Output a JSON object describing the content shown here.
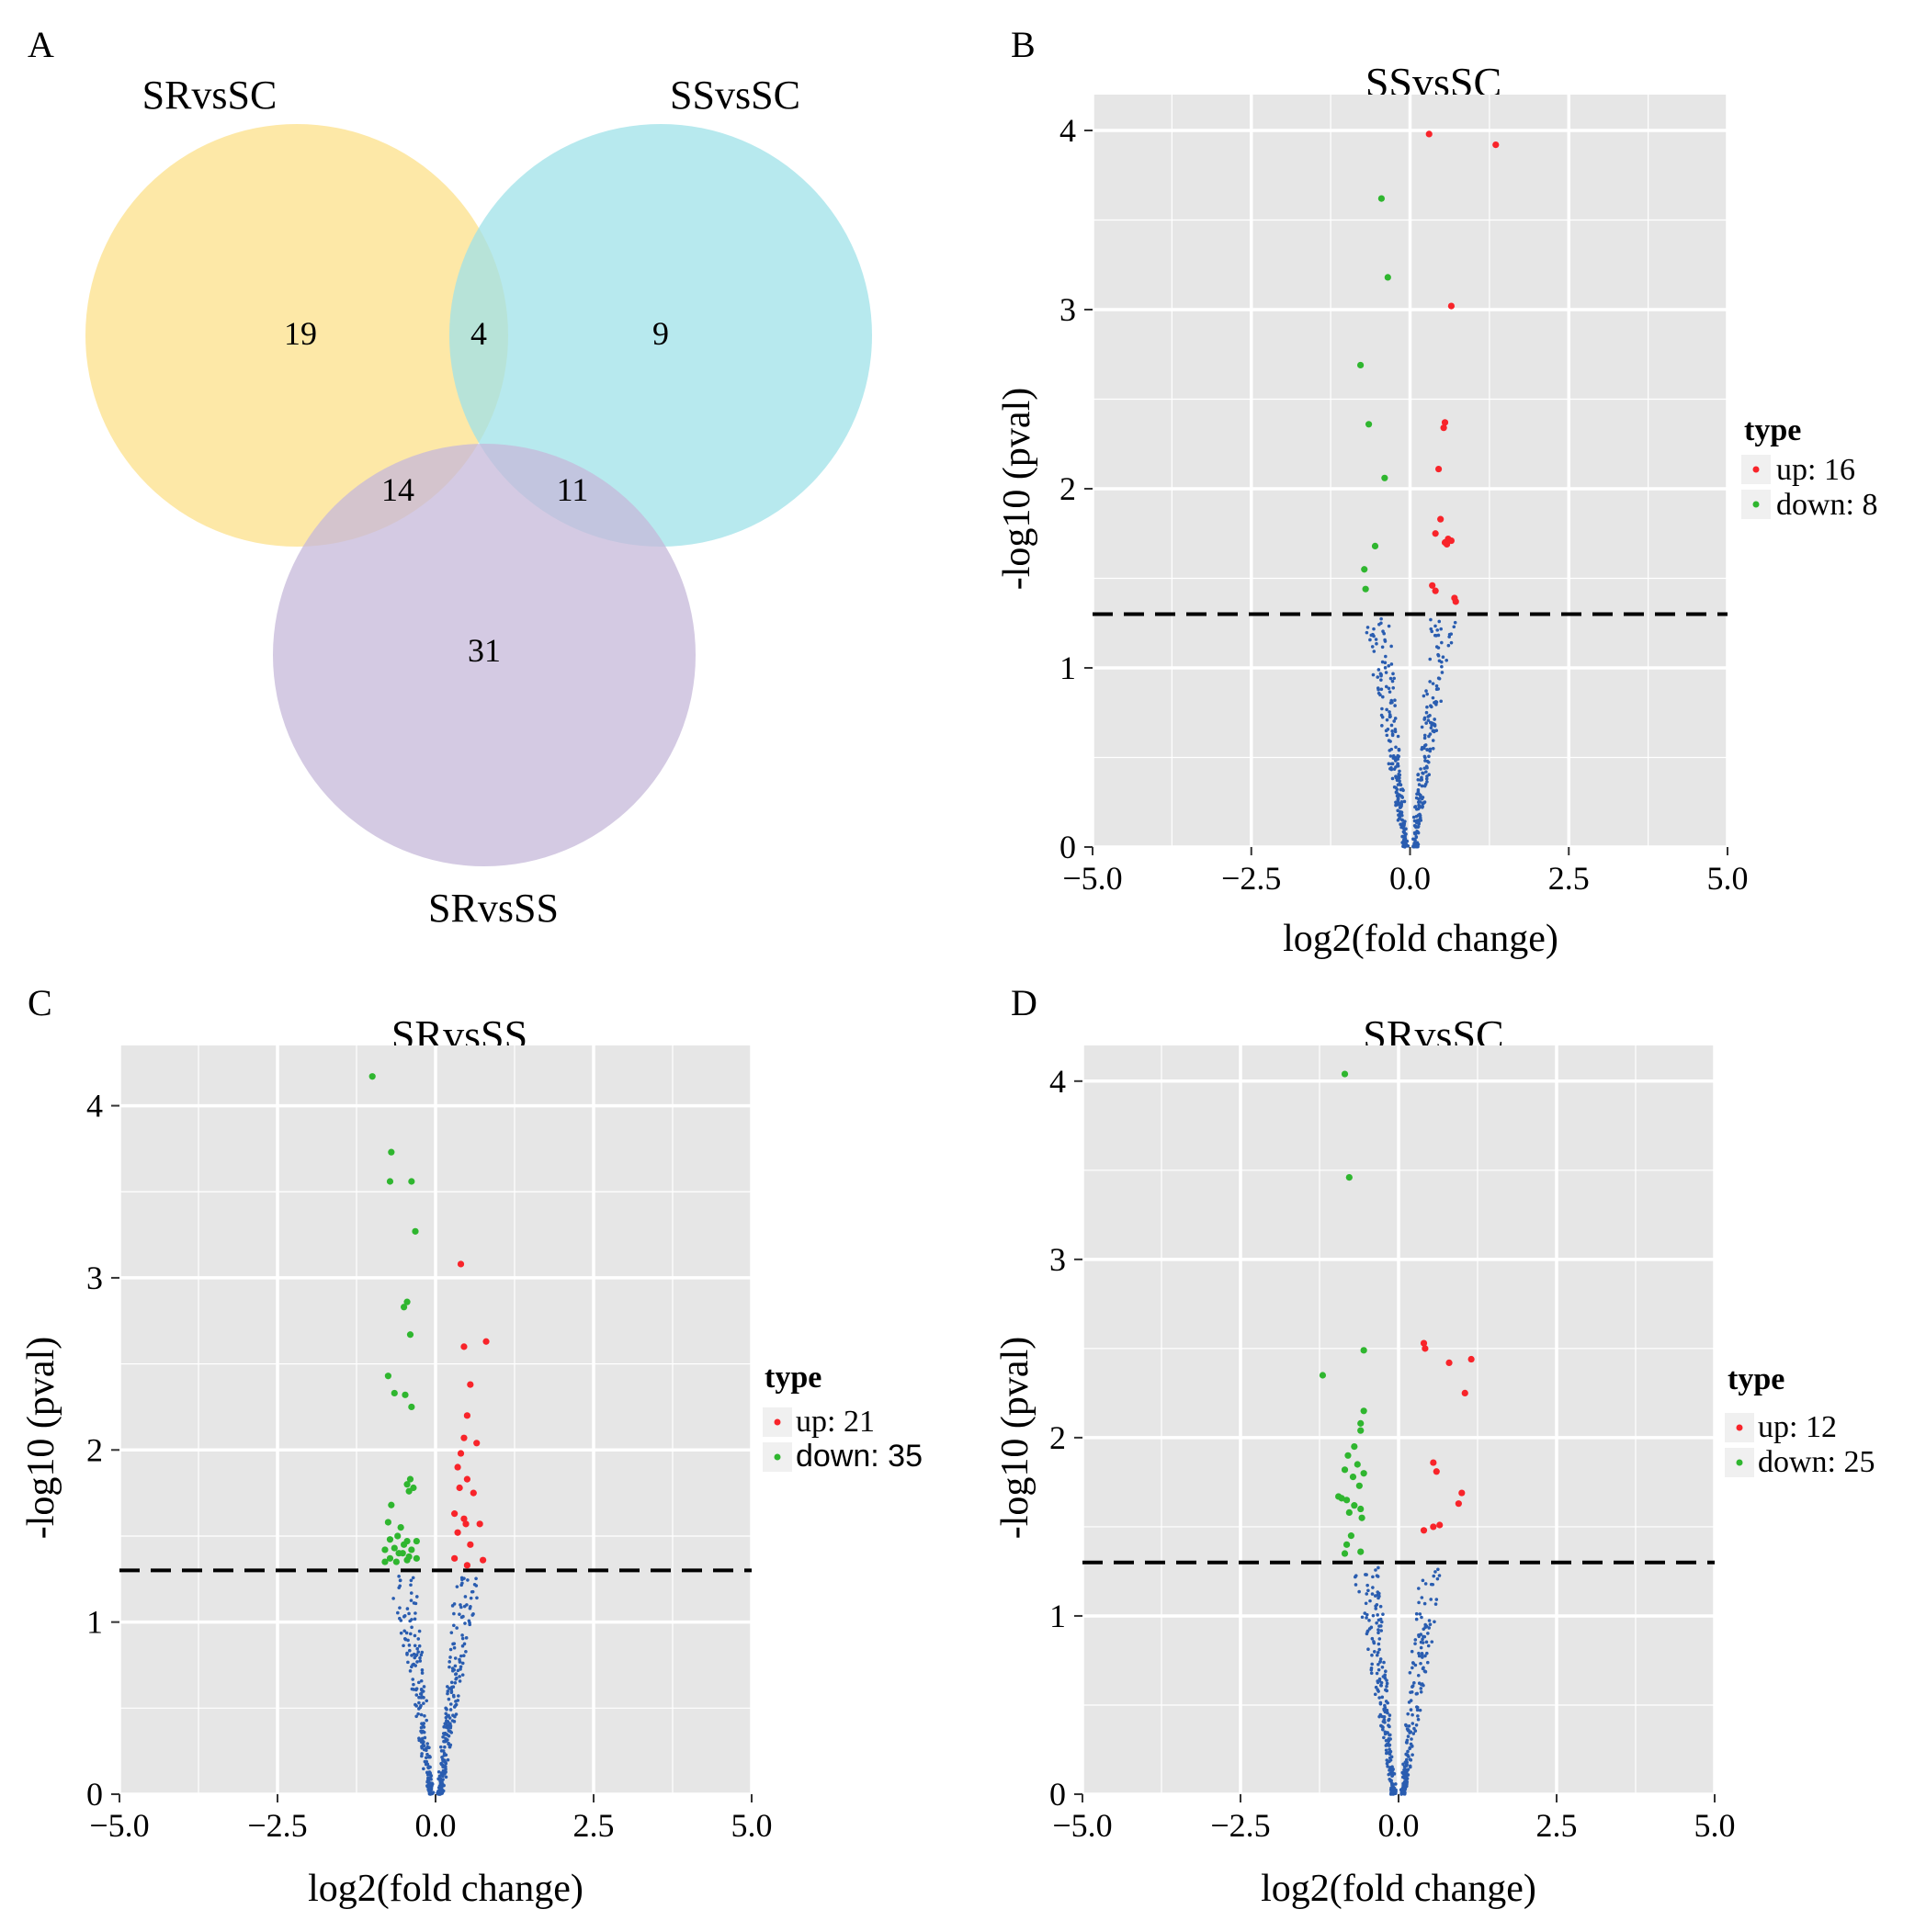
{
  "venn": {
    "panel_label": "A",
    "sets": [
      {
        "name": "SRvsSC",
        "color": "#fde498"
      },
      {
        "name": "SSvsSC",
        "color": "#9fe2e8"
      },
      {
        "name": "SRvsSS",
        "color": "#c5b8da"
      }
    ],
    "counts": {
      "SRvsSC_only": "19",
      "SRvsSC_SSvsSC": "4",
      "SSvsSC_only": "9",
      "SRvsSC_SRvsSS": "14",
      "SSvsSC_SRvsSS": "11",
      "SRvsSS_only": "31"
    }
  },
  "chart_data": [
    {
      "panel_label": "B",
      "type": "scatter",
      "title": "SSvsSC",
      "xlabel": "log2(fold change)",
      "ylabel": "-log10 (pval)",
      "xlim": [
        -5.0,
        5.0
      ],
      "ylim": [
        0,
        4.2
      ],
      "xticks": [
        "−5.0",
        "−2.5",
        "0.0",
        "2.5",
        "5.0"
      ],
      "yticks": [
        "0",
        "1",
        "2",
        "3",
        "4"
      ],
      "threshold": 1.3,
      "legend": {
        "title": "type",
        "up_label": "up: 16",
        "down_label": "down: 8"
      },
      "colors": {
        "up": "#f8242a",
        "down": "#2fb62f",
        "ns": "#2a5db0",
        "panel_bg": "#e6e6e6",
        "grid": "#ffffff",
        "threshold": "#000000"
      },
      "up_points": [
        [
          0.3,
          3.98
        ],
        [
          1.35,
          3.92
        ],
        [
          0.65,
          3.02
        ],
        [
          0.55,
          2.37
        ],
        [
          0.53,
          2.34
        ],
        [
          0.45,
          2.11
        ],
        [
          0.48,
          1.83
        ],
        [
          0.4,
          1.75
        ],
        [
          0.6,
          1.72
        ],
        [
          0.65,
          1.71
        ],
        [
          0.55,
          1.7
        ],
        [
          0.58,
          1.69
        ],
        [
          0.35,
          1.46
        ],
        [
          0.4,
          1.43
        ],
        [
          0.7,
          1.39
        ],
        [
          0.72,
          1.37
        ]
      ],
      "down_points": [
        [
          -0.45,
          3.62
        ],
        [
          -0.35,
          3.18
        ],
        [
          -0.78,
          2.69
        ],
        [
          -0.65,
          2.36
        ],
        [
          -0.4,
          2.06
        ],
        [
          -0.55,
          1.68
        ],
        [
          -0.72,
          1.55
        ],
        [
          -0.7,
          1.44
        ]
      ],
      "ns_seed": 11
    },
    {
      "panel_label": "C",
      "type": "scatter",
      "title": "SRvsSS",
      "xlabel": "log2(fold change)",
      "ylabel": "-log10 (pval)",
      "xlim": [
        -5.0,
        5.0
      ],
      "ylim": [
        0,
        4.35
      ],
      "xticks": [
        "−5.0",
        "−2.5",
        "0.0",
        "2.5",
        "5.0"
      ],
      "yticks": [
        "0",
        "1",
        "2",
        "3",
        "4"
      ],
      "threshold": 1.3,
      "legend": {
        "title": "type",
        "up_label": "up: 21",
        "down_label": "down: 35"
      },
      "colors": {
        "up": "#f8242a",
        "down": "#2fb62f",
        "ns": "#2a5db0",
        "panel_bg": "#e6e6e6",
        "grid": "#ffffff",
        "threshold": "#000000"
      },
      "up_points": [
        [
          0.4,
          3.08
        ],
        [
          0.8,
          2.63
        ],
        [
          0.45,
          2.6
        ],
        [
          0.55,
          2.38
        ],
        [
          0.5,
          2.2
        ],
        [
          0.45,
          2.07
        ],
        [
          0.65,
          2.04
        ],
        [
          0.4,
          1.98
        ],
        [
          0.35,
          1.9
        ],
        [
          0.5,
          1.83
        ],
        [
          0.38,
          1.78
        ],
        [
          0.6,
          1.75
        ],
        [
          0.3,
          1.63
        ],
        [
          0.45,
          1.6
        ],
        [
          0.48,
          1.57
        ],
        [
          0.7,
          1.57
        ],
        [
          0.35,
          1.52
        ],
        [
          0.55,
          1.45
        ],
        [
          0.3,
          1.37
        ],
        [
          0.75,
          1.36
        ],
        [
          0.5,
          1.33
        ]
      ],
      "down_points": [
        [
          -1.0,
          4.17
        ],
        [
          -0.7,
          3.73
        ],
        [
          -0.72,
          3.56
        ],
        [
          -0.38,
          3.56
        ],
        [
          -0.32,
          3.27
        ],
        [
          -0.45,
          2.86
        ],
        [
          -0.5,
          2.83
        ],
        [
          -0.4,
          2.67
        ],
        [
          -0.75,
          2.43
        ],
        [
          -0.65,
          2.33
        ],
        [
          -0.48,
          2.32
        ],
        [
          -0.38,
          2.25
        ],
        [
          -0.4,
          1.83
        ],
        [
          -0.45,
          1.8
        ],
        [
          -0.35,
          1.78
        ],
        [
          -0.42,
          1.76
        ],
        [
          -0.7,
          1.68
        ],
        [
          -0.75,
          1.58
        ],
        [
          -0.55,
          1.55
        ],
        [
          -0.6,
          1.5
        ],
        [
          -0.72,
          1.48
        ],
        [
          -0.45,
          1.47
        ],
        [
          -0.3,
          1.47
        ],
        [
          -0.5,
          1.45
        ],
        [
          -0.65,
          1.43
        ],
        [
          -0.8,
          1.42
        ],
        [
          -0.38,
          1.42
        ],
        [
          -0.52,
          1.4
        ],
        [
          -0.58,
          1.4
        ],
        [
          -0.72,
          1.37
        ],
        [
          -0.3,
          1.37
        ],
        [
          -0.45,
          1.36
        ],
        [
          -0.8,
          1.35
        ],
        [
          -0.62,
          1.35
        ],
        [
          -0.42,
          1.38
        ]
      ],
      "ns_seed": 23
    },
    {
      "panel_label": "D",
      "type": "scatter",
      "title": "SRvsSC",
      "xlabel": "log2(fold change)",
      "ylabel": "-log10 (pval)",
      "xlim": [
        -5.0,
        5.0
      ],
      "ylim": [
        0,
        4.2
      ],
      "xticks": [
        "−5.0",
        "−2.5",
        "0.0",
        "2.5",
        "5.0"
      ],
      "yticks": [
        "0",
        "1",
        "2",
        "3",
        "4"
      ],
      "threshold": 1.3,
      "legend": {
        "title": "type",
        "up_label": "up: 12",
        "down_label": "down: 25"
      },
      "colors": {
        "up": "#f8242a",
        "down": "#2fb62f",
        "ns": "#2a5db0",
        "panel_bg": "#e6e6e6",
        "grid": "#ffffff",
        "threshold": "#000000"
      },
      "up_points": [
        [
          0.4,
          2.53
        ],
        [
          0.42,
          2.5
        ],
        [
          1.15,
          2.44
        ],
        [
          0.8,
          2.42
        ],
        [
          1.05,
          2.25
        ],
        [
          0.55,
          1.86
        ],
        [
          0.6,
          1.81
        ],
        [
          1.0,
          1.69
        ],
        [
          0.95,
          1.63
        ],
        [
          0.65,
          1.51
        ],
        [
          0.55,
          1.5
        ],
        [
          0.4,
          1.48
        ]
      ],
      "down_points": [
        [
          -0.85,
          4.04
        ],
        [
          -0.78,
          3.46
        ],
        [
          -1.2,
          2.35
        ],
        [
          -0.55,
          2.49
        ],
        [
          -0.55,
          2.15
        ],
        [
          -0.6,
          2.08
        ],
        [
          -0.6,
          2.04
        ],
        [
          -0.7,
          1.95
        ],
        [
          -0.8,
          1.9
        ],
        [
          -0.65,
          1.85
        ],
        [
          -0.85,
          1.82
        ],
        [
          -0.55,
          1.8
        ],
        [
          -0.72,
          1.78
        ],
        [
          -0.62,
          1.73
        ],
        [
          -0.95,
          1.67
        ],
        [
          -0.9,
          1.66
        ],
        [
          -0.82,
          1.65
        ],
        [
          -0.7,
          1.62
        ],
        [
          -0.6,
          1.6
        ],
        [
          -0.78,
          1.58
        ],
        [
          -0.58,
          1.55
        ],
        [
          -0.75,
          1.45
        ],
        [
          -0.82,
          1.4
        ],
        [
          -0.6,
          1.36
        ],
        [
          -0.85,
          1.35
        ]
      ],
      "ns_seed": 37
    }
  ]
}
